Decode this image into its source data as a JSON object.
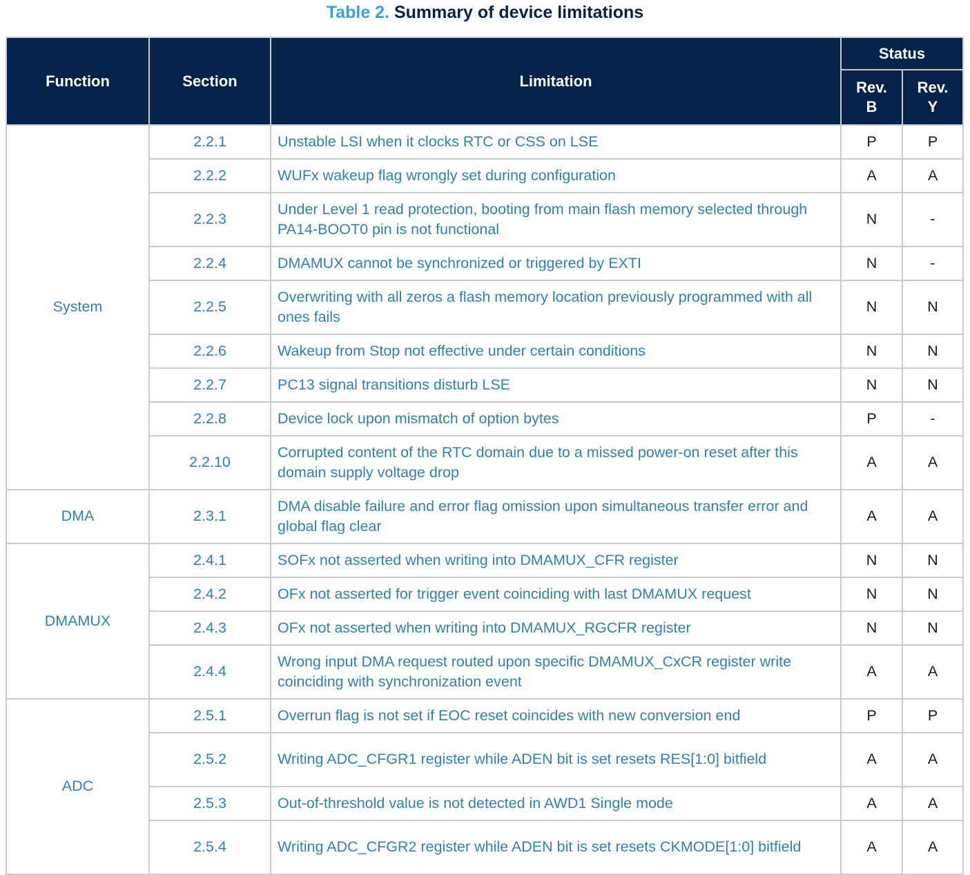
{
  "title": {
    "number": "Table 2.",
    "text": "Summary of device limitations"
  },
  "headers": {
    "function": "Function",
    "section": "Section",
    "limitation": "Limitation",
    "status": "Status",
    "rev_b": "Rev. B",
    "rev_y": "Rev. Y"
  },
  "groups": [
    {
      "function": "System",
      "rows": [
        {
          "section": "2.2.1",
          "limitation": "Unstable LSI when it clocks RTC or CSS on LSE",
          "rev_b": "P",
          "rev_y": "P"
        },
        {
          "section": "2.2.2",
          "limitation": "WUFx wakeup flag wrongly set during configuration",
          "rev_b": "A",
          "rev_y": "A"
        },
        {
          "section": "2.2.3",
          "limitation": "Under Level 1 read protection, booting from main flash memory selected through PA14-BOOT0 pin is not functional",
          "rev_b": "N",
          "rev_y": "-"
        },
        {
          "section": "2.2.4",
          "limitation": "DMAMUX cannot be synchronized or triggered by EXTI",
          "rev_b": "N",
          "rev_y": "-"
        },
        {
          "section": "2.2.5",
          "limitation": "Overwriting with all zeros a flash memory location previously programmed with all ones fails",
          "rev_b": "N",
          "rev_y": "N"
        },
        {
          "section": "2.2.6",
          "limitation": "Wakeup from Stop not effective under certain conditions",
          "rev_b": "N",
          "rev_y": "N"
        },
        {
          "section": "2.2.7",
          "limitation": "PC13 signal transitions disturb LSE",
          "rev_b": "N",
          "rev_y": "N"
        },
        {
          "section": "2.2.8",
          "limitation": "Device lock upon mismatch of option bytes",
          "rev_b": "P",
          "rev_y": "-"
        },
        {
          "section": "2.2.10",
          "limitation": "Corrupted content of the RTC domain due to a missed power-on reset after this domain supply voltage drop",
          "rev_b": "A",
          "rev_y": "A"
        }
      ]
    },
    {
      "function": "DMA",
      "rows": [
        {
          "section": "2.3.1",
          "limitation": "DMA disable failure and error flag omission upon simultaneous transfer error and global flag clear",
          "rev_b": "A",
          "rev_y": "A"
        }
      ]
    },
    {
      "function": "DMAMUX",
      "rows": [
        {
          "section": "2.4.1",
          "limitation": "SOFx not asserted when writing into DMAMUX_CFR register",
          "rev_b": "N",
          "rev_y": "N"
        },
        {
          "section": "2.4.2",
          "limitation": "OFx not asserted for trigger event coinciding with last DMAMUX request",
          "rev_b": "N",
          "rev_y": "N"
        },
        {
          "section": "2.4.3",
          "limitation": "OFx not asserted when writing into DMAMUX_RGCFR register",
          "rev_b": "N",
          "rev_y": "N"
        },
        {
          "section": "2.4.4",
          "limitation": "Wrong input DMA request routed upon specific DMAMUX_CxCR register write coinciding with synchronization event",
          "rev_b": "A",
          "rev_y": "A"
        }
      ]
    },
    {
      "function": "ADC",
      "rows": [
        {
          "section": "2.5.1",
          "limitation": "Overrun flag is not set if EOC reset coincides with new conversion end",
          "rev_b": "P",
          "rev_y": "P"
        },
        {
          "section": "2.5.2",
          "limitation": "Writing ADC_CFGR1 register while ADEN bit is set resets RES[1:0] bitfield",
          "rev_b": "A",
          "rev_y": "A"
        },
        {
          "section": "2.5.3",
          "limitation": "Out-of-threshold value is not detected in AWD1 Single mode",
          "rev_b": "A",
          "rev_y": "A"
        },
        {
          "section": "2.5.4",
          "limitation": "Writing ADC_CFGR2 register while ADEN bit is set resets CKMODE[1:0] bitfield",
          "rev_b": "A",
          "rev_y": "A"
        }
      ]
    }
  ]
}
